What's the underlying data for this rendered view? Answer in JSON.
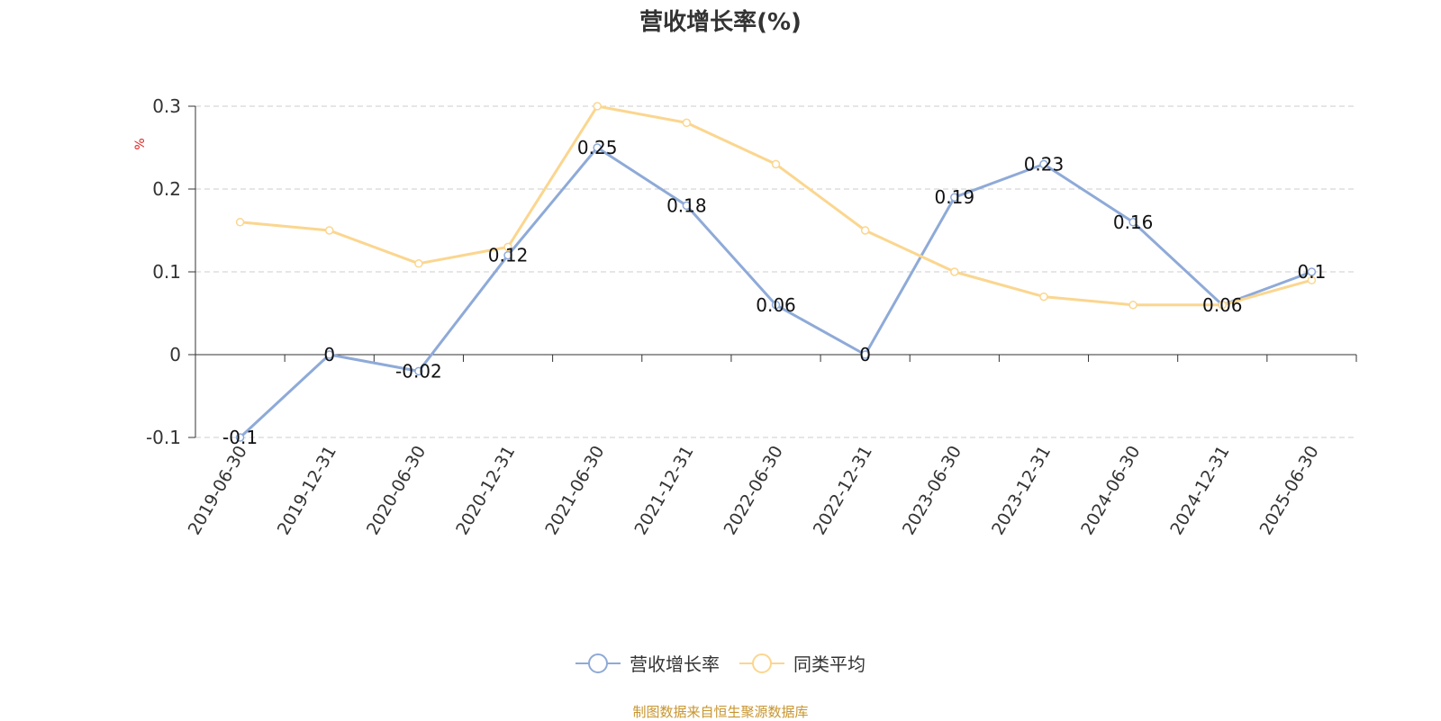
{
  "chart_data": {
    "type": "line",
    "title": "营收增长率(%)",
    "ylabel": "%",
    "xlabel": "",
    "categories": [
      "2019-06-30",
      "2019-12-31",
      "2020-06-30",
      "2020-12-31",
      "2021-06-30",
      "2021-12-31",
      "2022-06-30",
      "2022-12-31",
      "2023-06-30",
      "2023-12-31",
      "2024-06-30",
      "2024-12-31",
      "2025-06-30"
    ],
    "y_ticks": [
      "-0.1",
      "0",
      "0.1",
      "0.2",
      "0.3"
    ],
    "ylim": [
      -0.1,
      0.3
    ],
    "grid": true,
    "legend_position": "bottom-center",
    "series": [
      {
        "name": "营收增长率",
        "color": "#8eaad8",
        "values": [
          -0.1,
          0,
          -0.02,
          0.12,
          0.25,
          0.18,
          0.06,
          0,
          0.19,
          0.23,
          0.16,
          0.06,
          0.1
        ],
        "labels": [
          "-0.1",
          "0",
          "-0.02",
          "0.12",
          "0.25",
          "0.18",
          "0.06",
          "0",
          "0.19",
          "0.23",
          "0.16",
          "0.06",
          "0.1"
        ]
      },
      {
        "name": "同类平均",
        "color": "#fbd68f",
        "values": [
          0.16,
          0.15,
          0.11,
          0.13,
          0.3,
          0.28,
          0.23,
          0.15,
          0.1,
          0.07,
          0.06,
          0.06,
          0.09
        ]
      }
    ],
    "source": "制图数据来自恒生聚源数据库"
  }
}
